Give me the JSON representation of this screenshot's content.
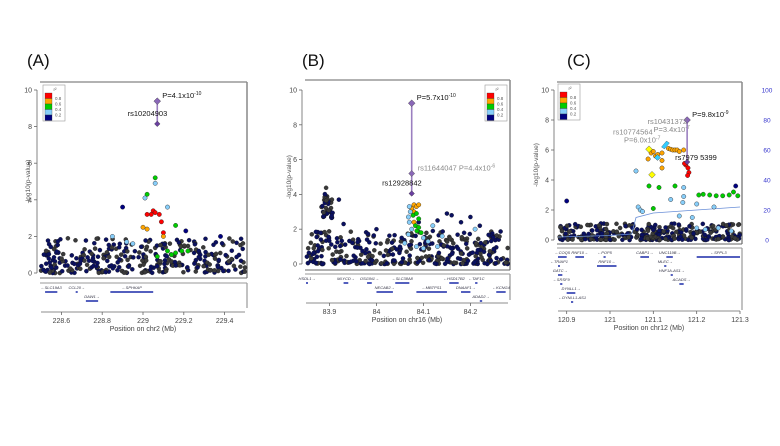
{
  "figure": {
    "panels": [
      "(A)",
      "(B)",
      "(C)"
    ]
  },
  "chart_data": [
    {
      "type": "scatter",
      "panel_label": "(A)",
      "title": "",
      "xlabel": "Position on chr2 (Mb)",
      "ylabel": "-log10(p-value)",
      "xlim": [
        228.5,
        229.5
      ],
      "ylim": [
        0,
        10
      ],
      "xticks": [
        "228.6",
        "228.8",
        "229",
        "229.2",
        "229.4"
      ],
      "xtick_values": [
        228.6,
        228.8,
        229.0,
        229.2,
        229.4
      ],
      "yticks": [
        "0",
        "2",
        "4",
        "6",
        "8",
        "10"
      ],
      "legend": {
        "title": "r²",
        "placement": "top-left",
        "entries": [
          "0.8",
          "0.6",
          "0.4",
          "0.2"
        ],
        "colors": [
          "#ff0000",
          "#ffa500",
          "#00cc00",
          "#87cefa",
          "#000080"
        ]
      },
      "lead_snp": {
        "name": "rs10204903",
        "x": 229.07,
        "y_combined": 9.39,
        "y_discovery": 8.15,
        "annotation": "P=4.1x10",
        "exponent": "-10"
      },
      "highlight_points": [
        {
          "x": 229.06,
          "y": 5.2,
          "r2": 0.5
        },
        {
          "x": 229.06,
          "y": 4.9,
          "r2": 0.3
        },
        {
          "x": 229.02,
          "y": 4.3,
          "r2": 0.5
        },
        {
          "x": 229.01,
          "y": 4.1,
          "r2": 0.3
        },
        {
          "x": 228.9,
          "y": 3.6,
          "r2": 0.1
        },
        {
          "x": 229.12,
          "y": 3.6,
          "r2": 0.3
        },
        {
          "x": 229.05,
          "y": 3.4,
          "r2": 0.9
        },
        {
          "x": 229.06,
          "y": 3.3,
          "r2": 0.9
        },
        {
          "x": 229.04,
          "y": 3.2,
          "r2": 0.9
        },
        {
          "x": 229.08,
          "y": 3.2,
          "r2": 0.9
        },
        {
          "x": 229.02,
          "y": 3.2,
          "r2": 0.9
        },
        {
          "x": 229.09,
          "y": 2.8,
          "r2": 0.9
        },
        {
          "x": 229.16,
          "y": 2.6,
          "r2": 0.5
        },
        {
          "x": 229.0,
          "y": 2.5,
          "r2": 0.7
        },
        {
          "x": 229.02,
          "y": 2.4,
          "r2": 0.7
        },
        {
          "x": 229.1,
          "y": 2.2,
          "r2": 0.9
        },
        {
          "x": 229.1,
          "y": 2.0,
          "r2": 0.7
        },
        {
          "x": 228.85,
          "y": 2.0,
          "r2": 0.3
        },
        {
          "x": 228.92,
          "y": 1.7,
          "r2": 0.3
        },
        {
          "x": 228.95,
          "y": 1.6,
          "r2": 0.3
        },
        {
          "x": 229.38,
          "y": 2.0,
          "r2": 0.1
        },
        {
          "x": 229.21,
          "y": 2.3,
          "r2": 0.1
        },
        {
          "x": 229.12,
          "y": 1.2,
          "r2": 0.5
        },
        {
          "x": 229.16,
          "y": 1.1,
          "r2": 0.5
        },
        {
          "x": 229.19,
          "y": 1.2,
          "r2": 0.5
        },
        {
          "x": 229.22,
          "y": 1.2,
          "r2": 0.5
        },
        {
          "x": 229.14,
          "y": 1.0,
          "r2": 0.5
        },
        {
          "x": 229.07,
          "y": 0.9,
          "r2": 0.5
        }
      ],
      "background": {
        "x_range": [
          228.5,
          229.5
        ],
        "y_max": 1.9,
        "count": 340,
        "seed": 11
      },
      "genes": [
        {
          "name": "SLC19A3",
          "start": 228.52,
          "end": 228.58,
          "row": 0,
          "dir": "-"
        },
        {
          "name": "CCL20",
          "start": 228.67,
          "end": 228.68,
          "row": 0,
          "dir": "+"
        },
        {
          "name": "DAW1",
          "start": 228.72,
          "end": 228.78,
          "row": 1,
          "dir": "+"
        },
        {
          "name": "SPHKAP",
          "start": 228.84,
          "end": 229.05,
          "row": 0,
          "dir": "-"
        }
      ]
    },
    {
      "type": "scatter",
      "panel_label": "(B)",
      "title": "",
      "xlabel": "Position on chr16 (Mb)",
      "ylabel": "-log10(p-value)",
      "xlim": [
        83.85,
        84.28
      ],
      "ylim": [
        0,
        10
      ],
      "xticks": [
        "83.9",
        "84",
        "84.1",
        "84.2"
      ],
      "xtick_values": [
        83.9,
        84.0,
        84.1,
        84.2
      ],
      "yticks": [
        "0",
        "2",
        "4",
        "6",
        "8",
        "10"
      ],
      "legend": {
        "title": "r²",
        "placement": "top-right",
        "entries": [
          "0.8",
          "0.6",
          "0.4",
          "0.2"
        ],
        "colors": [
          "#ff0000",
          "#ffa500",
          "#00cc00",
          "#87cefa",
          "#000080"
        ]
      },
      "lead_snp": {
        "name": "rs12928842",
        "x": 84.075,
        "y_combined": 9.24,
        "y_discovery": 4.05,
        "annotation": "P=5.7x10",
        "exponent": "-10"
      },
      "secondary_snp": {
        "name": "rs11644047",
        "x": 84.075,
        "y": 5.2,
        "annotation": "rs11644047 P=4.4x10",
        "exponent": "-6"
      },
      "highlight_points": [
        {
          "x": 84.08,
          "y": 3.4,
          "r2": 0.7
        },
        {
          "x": 84.085,
          "y": 3.3,
          "r2": 0.7
        },
        {
          "x": 84.09,
          "y": 3.4,
          "r2": 0.7
        },
        {
          "x": 84.075,
          "y": 3.2,
          "r2": 0.7
        },
        {
          "x": 84.08,
          "y": 3.0,
          "r2": 0.7
        },
        {
          "x": 84.078,
          "y": 2.8,
          "r2": 0.5
        },
        {
          "x": 84.085,
          "y": 2.9,
          "r2": 0.5
        },
        {
          "x": 84.09,
          "y": 2.6,
          "r2": 0.5
        },
        {
          "x": 84.08,
          "y": 2.4,
          "r2": 0.7
        },
        {
          "x": 84.083,
          "y": 2.2,
          "r2": 0.5
        },
        {
          "x": 84.086,
          "y": 1.9,
          "r2": 0.5
        },
        {
          "x": 84.09,
          "y": 2.1,
          "r2": 0.5
        },
        {
          "x": 84.095,
          "y": 1.8,
          "r2": 0.5
        },
        {
          "x": 84.07,
          "y": 3.3,
          "r2": 0.3
        },
        {
          "x": 84.072,
          "y": 3.0,
          "r2": 0.3
        },
        {
          "x": 84.068,
          "y": 2.7,
          "r2": 0.3
        },
        {
          "x": 84.07,
          "y": 2.4,
          "r2": 0.3
        },
        {
          "x": 84.075,
          "y": 2.0,
          "r2": 0.3
        },
        {
          "x": 84.068,
          "y": 1.7,
          "r2": 0.3
        },
        {
          "x": 84.1,
          "y": 1.5,
          "r2": 0.3
        },
        {
          "x": 84.12,
          "y": 2.2,
          "r2": 0.3
        },
        {
          "x": 84.11,
          "y": 1.3,
          "r2": 0.3
        },
        {
          "x": 84.06,
          "y": 1.2,
          "r2": 0.3
        },
        {
          "x": 84.13,
          "y": 1.0,
          "r2": 0.3
        },
        {
          "x": 84.21,
          "y": 2.0,
          "r2": 0.3
        },
        {
          "x": 84.1,
          "y": 0.9,
          "r2": 0.3
        },
        {
          "x": 84.085,
          "y": 1.0,
          "r2": 0.3
        },
        {
          "x": 84.14,
          "y": 1.6,
          "r2": 0.3
        }
      ],
      "peak_cluster": {
        "x_center": 83.895,
        "x_spread": 0.012,
        "y_min": 2.6,
        "y_max": 4.6,
        "count": 40,
        "seed": 5
      },
      "background": {
        "x_range": [
          83.85,
          84.28
        ],
        "y_max": 1.9,
        "count": 380,
        "seed": 23
      },
      "extra_points": [
        {
          "x": 84.15,
          "y": 2.9
        },
        {
          "x": 84.16,
          "y": 2.8
        },
        {
          "x": 84.2,
          "y": 2.7
        },
        {
          "x": 84.13,
          "y": 2.5
        },
        {
          "x": 84.18,
          "y": 2.4
        },
        {
          "x": 84.22,
          "y": 2.2
        },
        {
          "x": 84.09,
          "y": 2.4
        },
        {
          "x": 84.12,
          "y": 1.9
        },
        {
          "x": 83.93,
          "y": 2.3
        },
        {
          "x": 83.92,
          "y": 3.7
        },
        {
          "x": 84.0,
          "y": 2.0
        },
        {
          "x": 83.98,
          "y": 1.4
        }
      ],
      "genes": [
        {
          "name": "HSDL1",
          "start": 83.85,
          "end": 83.851,
          "row": 0,
          "dir": "+"
        },
        {
          "name": "MLYCD",
          "start": 83.93,
          "end": 83.94,
          "row": 0,
          "dir": "+"
        },
        {
          "name": "OSGIN1",
          "start": 83.98,
          "end": 83.99,
          "row": 0,
          "dir": "+"
        },
        {
          "name": "SLC38A8",
          "start": 84.04,
          "end": 84.07,
          "row": 0,
          "dir": "-"
        },
        {
          "name": "NECAB2",
          "start": 84.0,
          "end": 84.035,
          "row": 1,
          "dir": "+"
        },
        {
          "name": "MBTPS1",
          "start": 84.085,
          "end": 84.15,
          "row": 1,
          "dir": "-"
        },
        {
          "name": "HSD17B2",
          "start": 84.155,
          "end": 84.175,
          "row": 0,
          "dir": "-"
        },
        {
          "name": "TAF1C",
          "start": 84.21,
          "end": 84.215,
          "row": 0,
          "dir": "-"
        },
        {
          "name": "DNAAF1",
          "start": 84.18,
          "end": 84.2,
          "row": 1,
          "dir": "+"
        },
        {
          "name": "KCNG4",
          "start": 84.255,
          "end": 84.275,
          "row": 1,
          "dir": "-"
        },
        {
          "name": "ADAD2",
          "start": 84.22,
          "end": 84.225,
          "row": 2,
          "dir": "+"
        }
      ]
    },
    {
      "type": "scatter",
      "panel_label": "(C)",
      "title": "",
      "xlabel": "Position on chr12 (Mb)",
      "ylabel": "-log10(p-value)",
      "y2label": "Recombination rate (cM/Mb)",
      "xlim": [
        120.88,
        121.3
      ],
      "ylim": [
        0,
        10
      ],
      "y2lim": [
        0,
        100
      ],
      "xticks": [
        "120.9",
        "121",
        "121.1",
        "121.2",
        "121.3"
      ],
      "xtick_values": [
        120.9,
        121.0,
        121.1,
        121.2,
        121.3
      ],
      "yticks": [
        "0",
        "2",
        "4",
        "6",
        "8",
        "10"
      ],
      "y2ticks": [
        "0",
        "20",
        "40",
        "60",
        "80",
        "100"
      ],
      "legend": {
        "title": "r²",
        "placement": "top-left",
        "entries": [
          "0.8",
          "0.6",
          "0.4",
          "0.2"
        ],
        "colors": [
          "#ff0000",
          "#ffa500",
          "#00cc00",
          "#87cefa",
          "#000080"
        ]
      },
      "lead_snp": {
        "name": "rs7979xx5399",
        "label": "rs7979 5399",
        "x": 121.178,
        "y_combined": 8.0,
        "y_discovery": 5.2,
        "annotation": "P=9.8x10",
        "exponent": "-9"
      },
      "secondary_snps": [
        {
          "name": "rs10774564",
          "label": "rs10774564",
          "pval": "P=6.0x10",
          "exponent": "-7",
          "x": 121.09,
          "y": 6.05,
          "y_disc": 4.35,
          "color": "#ffff00"
        },
        {
          "name": "rs10431372",
          "label": "rs10431372",
          "pval": "P=3.4x10",
          "exponent": "-7",
          "x": 121.128,
          "y": 6.4,
          "y_disc": 5.5,
          "color": "#33ccff"
        }
      ],
      "highlight_points": [
        {
          "x": 121.095,
          "y": 5.8,
          "r2": 0.7
        },
        {
          "x": 121.1,
          "y": 5.9,
          "r2": 0.7
        },
        {
          "x": 121.105,
          "y": 5.6,
          "r2": 0.7
        },
        {
          "x": 121.11,
          "y": 5.7,
          "r2": 0.7
        },
        {
          "x": 121.088,
          "y": 5.4,
          "r2": 0.7
        },
        {
          "x": 121.12,
          "y": 5.8,
          "r2": 0.7
        },
        {
          "x": 121.135,
          "y": 6.1,
          "r2": 0.7
        },
        {
          "x": 121.14,
          "y": 6.05,
          "r2": 0.7
        },
        {
          "x": 121.145,
          "y": 6.0,
          "r2": 0.7
        },
        {
          "x": 121.15,
          "y": 6.0,
          "r2": 0.7
        },
        {
          "x": 121.155,
          "y": 6.0,
          "r2": 0.7
        },
        {
          "x": 121.16,
          "y": 5.9,
          "r2": 0.7
        },
        {
          "x": 121.17,
          "y": 6.0,
          "r2": 0.7
        },
        {
          "x": 121.12,
          "y": 5.3,
          "r2": 0.7
        },
        {
          "x": 121.12,
          "y": 4.8,
          "r2": 0.7
        },
        {
          "x": 121.175,
          "y": 5.0,
          "r2": 0.9
        },
        {
          "x": 121.18,
          "y": 4.8,
          "r2": 0.9
        },
        {
          "x": 121.182,
          "y": 4.5,
          "r2": 0.9
        },
        {
          "x": 121.179,
          "y": 4.3,
          "r2": 0.9
        },
        {
          "x": 121.172,
          "y": 5.1,
          "r2": 0.9
        },
        {
          "x": 121.06,
          "y": 4.6,
          "r2": 0.3
        },
        {
          "x": 121.09,
          "y": 3.6,
          "r2": 0.5
        },
        {
          "x": 121.113,
          "y": 3.5,
          "r2": 0.5
        },
        {
          "x": 121.15,
          "y": 3.6,
          "r2": 0.5
        },
        {
          "x": 121.17,
          "y": 3.5,
          "r2": 0.3
        },
        {
          "x": 121.17,
          "y": 2.9,
          "r2": 0.3
        },
        {
          "x": 121.168,
          "y": 2.5,
          "r2": 0.3
        },
        {
          "x": 121.1,
          "y": 2.1,
          "r2": 0.5
        },
        {
          "x": 121.065,
          "y": 2.2,
          "r2": 0.3
        },
        {
          "x": 121.07,
          "y": 2.0,
          "r2": 0.3
        },
        {
          "x": 121.075,
          "y": 1.9,
          "r2": 0.3
        },
        {
          "x": 121.14,
          "y": 2.7,
          "r2": 0.3
        },
        {
          "x": 121.205,
          "y": 3.0,
          "r2": 0.5
        },
        {
          "x": 121.215,
          "y": 3.05,
          "r2": 0.5
        },
        {
          "x": 121.23,
          "y": 3.0,
          "r2": 0.5
        },
        {
          "x": 121.245,
          "y": 2.95,
          "r2": 0.5
        },
        {
          "x": 121.26,
          "y": 2.95,
          "r2": 0.5
        },
        {
          "x": 121.275,
          "y": 3.0,
          "r2": 0.5
        },
        {
          "x": 121.285,
          "y": 3.2,
          "r2": 0.5
        },
        {
          "x": 121.295,
          "y": 2.95,
          "r2": 0.5
        },
        {
          "x": 121.2,
          "y": 2.4,
          "r2": 0.3
        },
        {
          "x": 121.24,
          "y": 2.2,
          "r2": 0.3
        },
        {
          "x": 121.16,
          "y": 1.6,
          "r2": 0.3
        },
        {
          "x": 121.19,
          "y": 1.5,
          "r2": 0.3
        },
        {
          "x": 121.2,
          "y": 0.8,
          "r2": 0.3
        },
        {
          "x": 121.22,
          "y": 0.7,
          "r2": 0.3
        },
        {
          "x": 121.25,
          "y": 0.8,
          "r2": 0.3
        },
        {
          "x": 121.28,
          "y": 0.6,
          "r2": 0.3
        },
        {
          "x": 121.29,
          "y": 3.6,
          "r2": 0.1
        },
        {
          "x": 120.9,
          "y": 2.6,
          "r2": 0.1
        }
      ],
      "background": {
        "x_range": [
          120.88,
          121.3
        ],
        "y_max": 1.1,
        "count": 330,
        "seed": 41
      },
      "genes": [
        {
          "name": "COQ5",
          "start": 120.88,
          "end": 120.9,
          "row": 0,
          "dir": "-"
        },
        {
          "name": "RNF10",
          "start": 120.92,
          "end": 120.94,
          "row": 0,
          "dir": "+"
        },
        {
          "name": "POP5",
          "start": 120.985,
          "end": 120.99,
          "row": 0,
          "dir": "-"
        },
        {
          "name": "CABP1",
          "start": 121.07,
          "end": 121.09,
          "row": 0,
          "dir": "+"
        },
        {
          "name": "UNC119B",
          "start": 121.13,
          "end": 121.145,
          "row": 0,
          "dir": "+"
        },
        {
          "name": "SPPL3",
          "start": 121.2,
          "end": 121.3,
          "row": 0,
          "dir": "-"
        },
        {
          "name": "TRIAP1",
          "start": 120.88,
          "end": 120.882,
          "row": 1,
          "dir": "-"
        },
        {
          "name": "RNF10",
          "start": 120.97,
          "end": 121.015,
          "row": 1,
          "dir": "+"
        },
        {
          "name": "MLEC",
          "start": 121.125,
          "end": 121.13,
          "row": 1,
          "dir": "+"
        },
        {
          "name": "GATC",
          "start": 120.88,
          "end": 120.89,
          "row": 2,
          "dir": "+"
        },
        {
          "name": "HNF1A-AS1",
          "start": 121.14,
          "end": 121.145,
          "row": 2,
          "dir": "+"
        },
        {
          "name": "SRSF9",
          "start": 120.885,
          "end": 120.89,
          "row": 3,
          "dir": "-"
        },
        {
          "name": "ACADS",
          "start": 121.16,
          "end": 121.17,
          "row": 3,
          "dir": "+"
        },
        {
          "name": "DYNLL1",
          "start": 120.9,
          "end": 120.92,
          "row": 4,
          "dir": "+"
        },
        {
          "name": "DYNLL1-AS1",
          "start": 120.91,
          "end": 120.915,
          "row": 5,
          "dir": "-"
        }
      ],
      "recombination": {
        "x": [
          120.88,
          121.0,
          121.05,
          121.06,
          121.1,
          121.2,
          121.3
        ],
        "y": [
          2,
          3,
          4,
          15,
          18,
          20,
          22
        ]
      }
    }
  ]
}
